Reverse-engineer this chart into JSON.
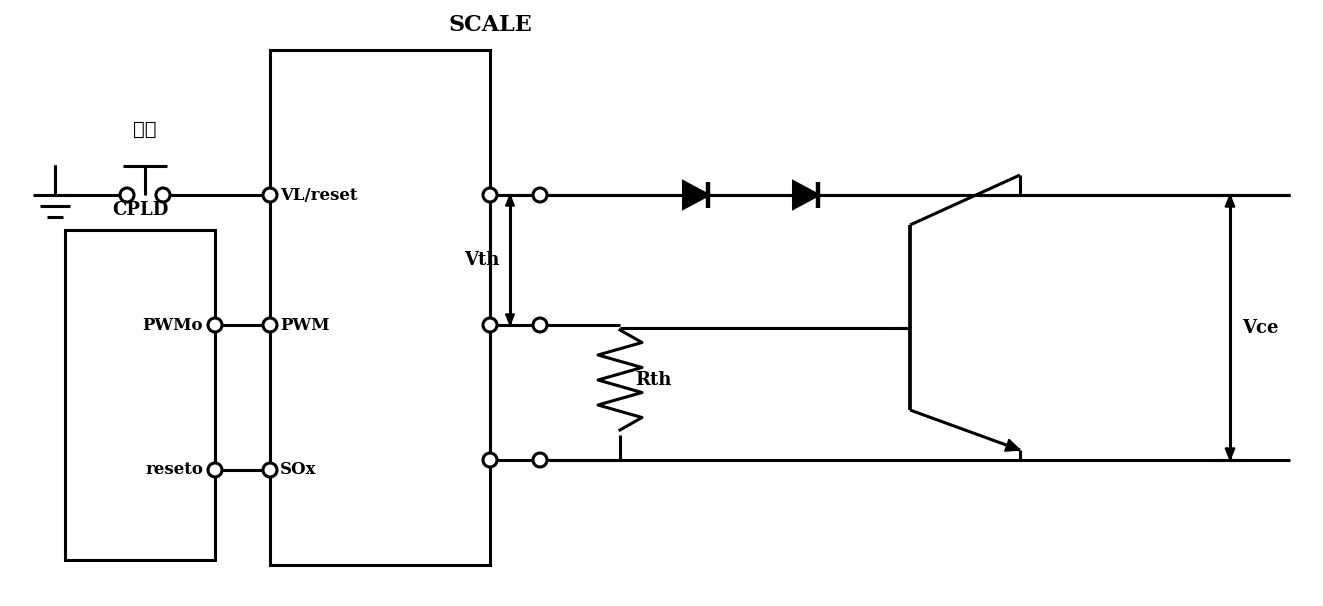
{
  "title": "SCALE",
  "bg": "#ffffff",
  "lc": "#000000",
  "lw": 2.2,
  "fw": 13.23,
  "fh": 6.06,
  "fuwei": "复位",
  "cpld": "CPLD",
  "vl_reset": "VL/reset",
  "pwm_label": "PWM",
  "sox_label": "SOx",
  "vth_label": "Vth",
  "rth_label": "Rth",
  "vce_label": "Vce",
  "pwmo_label": "PWMo",
  "reseto_label": "reseto"
}
